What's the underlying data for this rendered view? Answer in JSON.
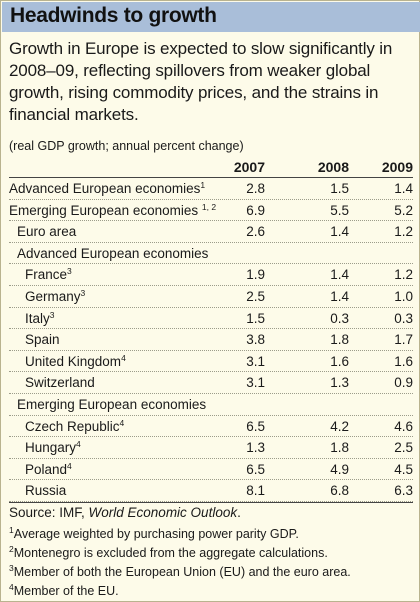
{
  "title": "Headwinds to growth",
  "subtitle": "Growth in Europe is expected to slow significantly in 2008–09, reflecting spillovers from weaker global growth, rising commodity prices, and the strains in financial markets.",
  "unit_note": "(real GDP growth; annual percent change)",
  "columns": [
    "2007",
    "2008",
    "2009"
  ],
  "rows": [
    {
      "label": "Advanced European economies",
      "sup": "1",
      "indent": 0,
      "values": [
        "2.8",
        "1.5",
        "1.4"
      ]
    },
    {
      "label": "Emerging European economies ",
      "sup": "1, 2",
      "indent": 0,
      "values": [
        "6.9",
        "5.5",
        "5.2"
      ]
    },
    {
      "label": "Euro area",
      "sup": "",
      "indent": 1,
      "values": [
        "2.6",
        "1.4",
        "1.2"
      ]
    },
    {
      "label": "Advanced European economies",
      "sup": "",
      "indent": 1,
      "values": [
        "",
        "",
        ""
      ]
    },
    {
      "label": "France",
      "sup": "3",
      "indent": 2,
      "values": [
        "1.9",
        "1.4",
        "1.2"
      ]
    },
    {
      "label": "Germany",
      "sup": "3",
      "indent": 2,
      "values": [
        "2.5",
        "1.4",
        "1.0"
      ]
    },
    {
      "label": "Italy",
      "sup": "3",
      "indent": 2,
      "values": [
        "1.5",
        "0.3",
        "0.3"
      ]
    },
    {
      "label": "Spain",
      "sup": "",
      "indent": 2,
      "values": [
        "3.8",
        "1.8",
        "1.7"
      ]
    },
    {
      "label": "United Kingdom",
      "sup": "4",
      "indent": 2,
      "values": [
        "3.1",
        "1.6",
        "1.6"
      ]
    },
    {
      "label": "Switzerland",
      "sup": "",
      "indent": 2,
      "values": [
        "3.1",
        "1.3",
        "0.9"
      ]
    },
    {
      "label": "Emerging European economies",
      "sup": "",
      "indent": 1,
      "values": [
        "",
        "",
        ""
      ]
    },
    {
      "label": "Czech Republic",
      "sup": "4",
      "indent": 2,
      "values": [
        "6.5",
        "4.2",
        "4.6"
      ]
    },
    {
      "label": "Hungary",
      "sup": "4",
      "indent": 2,
      "values": [
        "1.3",
        "1.8",
        "2.5"
      ]
    },
    {
      "label": "Poland",
      "sup": "4",
      "indent": 2,
      "values": [
        "6.5",
        "4.9",
        "4.5"
      ]
    },
    {
      "label": "Russia",
      "sup": "",
      "indent": 2,
      "values": [
        "8.1",
        "6.8",
        "6.3"
      ]
    }
  ],
  "source": {
    "prefix": "Source: IMF, ",
    "publication": "World Economic Outlook",
    "suffix": "."
  },
  "footnotes": [
    {
      "mark": "1",
      "text": "Average weighted by purchasing power parity GDP."
    },
    {
      "mark": "2",
      "text": "Montenegro is excluded from the aggregate calculations."
    },
    {
      "mark": "3",
      "text": "Member of both the European Union (EU) and the euro area."
    },
    {
      "mark": "4",
      "text": "Member of the EU."
    }
  ],
  "colors": {
    "title_bar": "#a9bed9",
    "background": "#fdfbe9"
  }
}
